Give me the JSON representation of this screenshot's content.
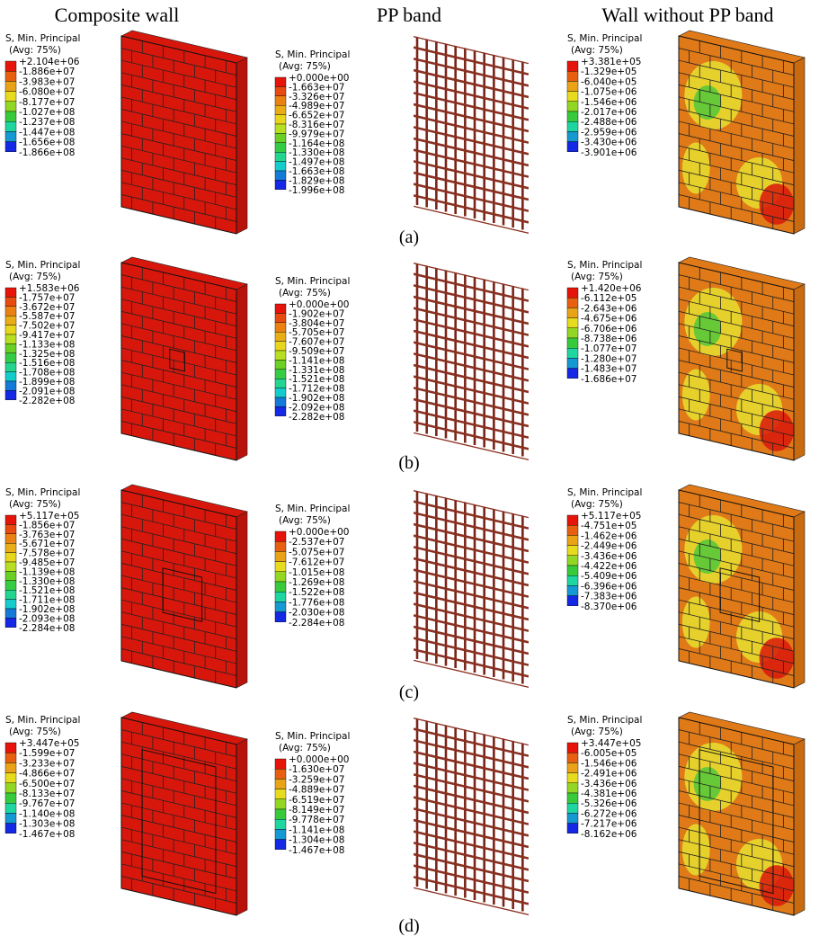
{
  "headers": [
    "Composite wall",
    "PP band",
    "Wall without PP band"
  ],
  "rows": [
    {
      "label": "(a)",
      "panels": [
        {
          "legend_title": "S, Min. Principal",
          "legend_subtitle": "(Avg: 75%)",
          "legend_values": [
            "+2.104e+06",
            "-1.886e+07",
            "-3.983e+07",
            "-6.080e+07",
            "-8.177e+07",
            "-1.027e+08",
            "-1.237e+08",
            "-1.447e+08",
            "-1.656e+08",
            "-1.866e+08"
          ]
        },
        {
          "legend_title": "S, Min. Principal",
          "legend_subtitle": "(Avg: 75%)",
          "legend_values": [
            "+0.000e+00",
            "-1.663e+07",
            "-3.326e+07",
            "-4.989e+07",
            "-6.652e+07",
            "-8.316e+07",
            "-9.979e+07",
            "-1.164e+08",
            "-1.330e+08",
            "-1.497e+08",
            "-1.663e+08",
            "-1.829e+08",
            "-1.996e+08"
          ]
        },
        {
          "legend_title": "S, Min. Principal",
          "legend_subtitle": "(Avg: 75%)",
          "legend_values": [
            "+3.381e+05",
            "-1.329e+05",
            "-6.040e+05",
            "-1.075e+06",
            "-1.546e+06",
            "-2.017e+06",
            "-2.488e+06",
            "-2.959e+06",
            "-3.430e+06",
            "-3.901e+06"
          ]
        }
      ]
    },
    {
      "label": "(b)",
      "panels": [
        {
          "legend_title": "S, Min. Principal",
          "legend_subtitle": "(Avg: 75%)",
          "legend_values": [
            "+1.583e+06",
            "-1.757e+07",
            "-3.672e+07",
            "-5.587e+07",
            "-7.502e+07",
            "-9.417e+07",
            "-1.133e+08",
            "-1.325e+08",
            "-1.516e+08",
            "-1.708e+08",
            "-1.899e+08",
            "-2.091e+08",
            "-2.282e+08"
          ]
        },
        {
          "legend_title": "S, Min. Principal",
          "legend_subtitle": "(Avg: 75%)",
          "legend_values": [
            "+0.000e+00",
            "-1.902e+07",
            "-3.804e+07",
            "-5.705e+07",
            "-7.607e+07",
            "-9.509e+07",
            "-1.141e+08",
            "-1.331e+08",
            "-1.521e+08",
            "-1.712e+08",
            "-1.902e+08",
            "-2.092e+08",
            "-2.282e+08"
          ]
        },
        {
          "legend_title": "S, Min. Principal",
          "legend_subtitle": "(Avg: 75%)",
          "legend_values": [
            "+1.420e+06",
            "-6.112e+05",
            "-2.643e+06",
            "-4.675e+06",
            "-6.706e+06",
            "-8.738e+06",
            "-1.077e+07",
            "-1.280e+07",
            "-1.483e+07",
            "-1.686e+07"
          ]
        }
      ]
    },
    {
      "label": "(c)",
      "panels": [
        {
          "legend_title": "S, Min. Principal",
          "legend_subtitle": "(Avg: 75%)",
          "legend_values": [
            "+5.117e+05",
            "-1.856e+07",
            "-3.763e+07",
            "-5.671e+07",
            "-7.578e+07",
            "-9.485e+07",
            "-1.139e+08",
            "-1.330e+08",
            "-1.521e+08",
            "-1.711e+08",
            "-1.902e+08",
            "-2.093e+08",
            "-2.284e+08"
          ]
        },
        {
          "legend_title": "S, Min. Principal",
          "legend_subtitle": "(Avg: 75%)",
          "legend_values": [
            "+0.000e+00",
            "-2.537e+07",
            "-5.075e+07",
            "-7.612e+07",
            "-1.015e+08",
            "-1.269e+08",
            "-1.522e+08",
            "-1.776e+08",
            "-2.030e+08",
            "-2.284e+08"
          ]
        },
        {
          "legend_title": "S, Min. Principal",
          "legend_subtitle": "(Avg: 75%)",
          "legend_values": [
            "+5.117e+05",
            "-4.751e+05",
            "-1.462e+06",
            "-2.449e+06",
            "-3.436e+06",
            "-4.422e+06",
            "-5.409e+06",
            "-6.396e+06",
            "-7.383e+06",
            "-8.370e+06"
          ]
        }
      ]
    },
    {
      "label": "(d)",
      "panels": [
        {
          "legend_title": "S, Min. Principal",
          "legend_subtitle": "(Avg: 75%)",
          "legend_values": [
            "+3.447e+05",
            "-1.599e+07",
            "-3.233e+07",
            "-4.866e+07",
            "-6.500e+07",
            "-8.133e+07",
            "-9.767e+07",
            "-1.140e+08",
            "-1.303e+08",
            "-1.467e+08"
          ]
        },
        {
          "legend_title": "S, Min. Principal",
          "legend_subtitle": "(Avg: 75%)",
          "legend_values": [
            "+0.000e+00",
            "-1.630e+07",
            "-3.259e+07",
            "-4.889e+07",
            "-6.519e+07",
            "-8.149e+07",
            "-9.778e+07",
            "-1.141e+08",
            "-1.304e+08",
            "-1.467e+08"
          ]
        },
        {
          "legend_title": "S, Min. Principal",
          "legend_subtitle": "(Avg: 75%)",
          "legend_values": [
            "+3.447e+05",
            "-6.005e+05",
            "-1.546e+06",
            "-2.491e+06",
            "-3.436e+06",
            "-4.381e+06",
            "-5.326e+06",
            "-6.272e+06",
            "-7.217e+06",
            "-8.162e+06"
          ]
        }
      ]
    }
  ]
}
